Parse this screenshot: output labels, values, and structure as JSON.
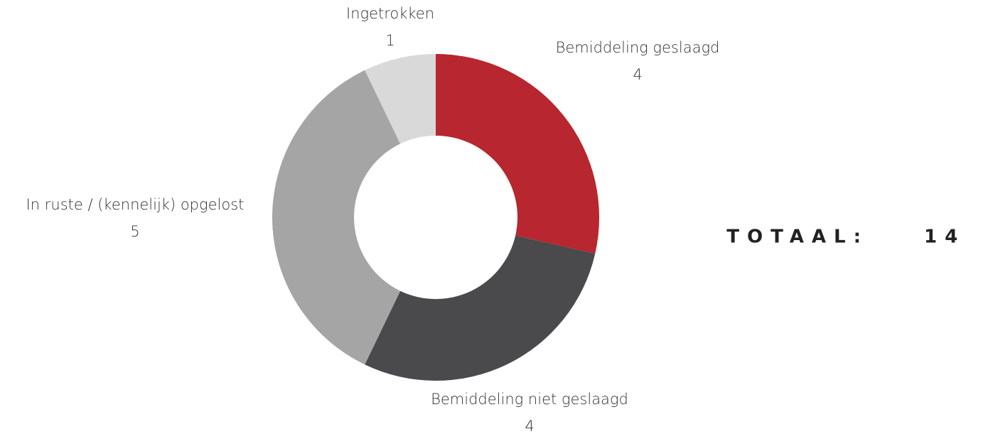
{
  "chart_data": {
    "type": "donut",
    "categories": [
      "Bemiddeling geslaagd",
      "Bemiddeling niet geslaagd",
      "In ruste / (kennelijk) opgelost",
      "Ingetrokken"
    ],
    "values": [
      4,
      4,
      5,
      1
    ],
    "colors": [
      "#b8262f",
      "#4a4a4c",
      "#a5a5a5",
      "#d9d9d9"
    ],
    "total_label": "TOTAAL:",
    "total": 14
  }
}
